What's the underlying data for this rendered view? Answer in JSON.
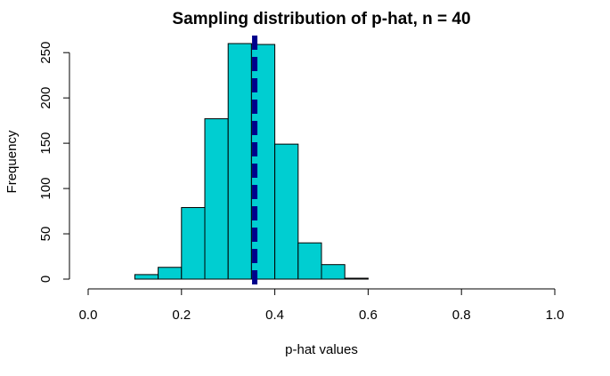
{
  "chart_data": {
    "type": "bar",
    "subtype": "histogram",
    "title": "Sampling distribution of p-hat, n = 40",
    "xlabel": "p-hat values",
    "ylabel": "Frequency",
    "xlim": [
      0,
      1
    ],
    "ylim": [
      0,
      260
    ],
    "x_ticks": [
      "0.0",
      "0.2",
      "0.4",
      "0.6",
      "0.8",
      "1.0"
    ],
    "y_ticks": [
      "0",
      "50",
      "100",
      "150",
      "200",
      "250"
    ],
    "bins": [
      {
        "start": 0.1,
        "end": 0.15,
        "count": 5
      },
      {
        "start": 0.15,
        "end": 0.2,
        "count": 13
      },
      {
        "start": 0.2,
        "end": 0.25,
        "count": 79
      },
      {
        "start": 0.25,
        "end": 0.3,
        "count": 177
      },
      {
        "start": 0.3,
        "end": 0.35,
        "count": 260
      },
      {
        "start": 0.35,
        "end": 0.4,
        "count": 259
      },
      {
        "start": 0.4,
        "end": 0.45,
        "count": 149
      },
      {
        "start": 0.45,
        "end": 0.5,
        "count": 40
      },
      {
        "start": 0.5,
        "end": 0.55,
        "count": 16
      },
      {
        "start": 0.55,
        "end": 0.6,
        "count": 1
      }
    ],
    "reference_line": {
      "x": 0.357,
      "style": "dashed",
      "color": "#00008B"
    },
    "bar_color": "#00CED1",
    "bar_edge_color": "#000000",
    "grid": false,
    "legend": "none"
  }
}
